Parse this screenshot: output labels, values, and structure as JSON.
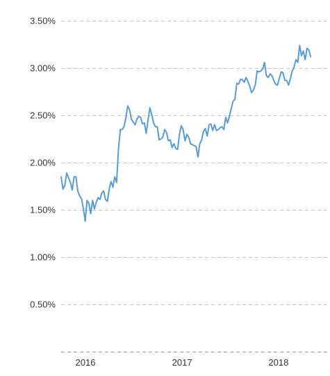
{
  "chart_data": {
    "type": "line",
    "title": "",
    "xlabel": "",
    "ylabel": "",
    "ylim": [
      0,
      3.5
    ],
    "xlim": [
      "2015-10-01",
      "2018-07-15"
    ],
    "grid": true,
    "line_color": "#5b9bd5",
    "grid_color": "#c8c8c8",
    "y_ticks": [
      {
        "value": 0.5,
        "label": "0.50%"
      },
      {
        "value": 1.0,
        "label": "1.00%"
      },
      {
        "value": 1.5,
        "label": "1.50%"
      },
      {
        "value": 2.0,
        "label": "2.00%"
      },
      {
        "value": 2.5,
        "label": "2.50%"
      },
      {
        "value": 3.0,
        "label": "3.00%"
      },
      {
        "value": 3.5,
        "label": "3.50%"
      }
    ],
    "x_ticks": [
      {
        "value": "2016-01-01",
        "label": "2016"
      },
      {
        "value": "2017-01-01",
        "label": "2017"
      },
      {
        "value": "2018-01-01",
        "label": "2018"
      }
    ],
    "series": [
      {
        "points": [
          [
            "2015-10-01",
            1.85
          ],
          [
            "2015-10-08",
            1.72
          ],
          [
            "2015-10-15",
            1.76
          ],
          [
            "2015-10-22",
            1.89
          ],
          [
            "2015-10-29",
            1.84
          ],
          [
            "2015-11-05",
            1.79
          ],
          [
            "2015-11-12",
            1.71
          ],
          [
            "2015-11-19",
            1.85
          ],
          [
            "2015-11-26",
            1.85
          ],
          [
            "2015-12-03",
            1.7
          ],
          [
            "2015-12-10",
            1.65
          ],
          [
            "2015-12-17",
            1.62
          ],
          [
            "2015-12-24",
            1.52
          ],
          [
            "2015-12-31",
            1.38
          ],
          [
            "2016-01-07",
            1.6
          ],
          [
            "2016-01-14",
            1.57
          ],
          [
            "2016-01-21",
            1.46
          ],
          [
            "2016-01-28",
            1.6
          ],
          [
            "2016-02-04",
            1.51
          ],
          [
            "2016-02-11",
            1.58
          ],
          [
            "2016-02-18",
            1.63
          ],
          [
            "2016-02-25",
            1.61
          ],
          [
            "2016-03-03",
            1.68
          ],
          [
            "2016-03-10",
            1.7
          ],
          [
            "2016-03-17",
            1.61
          ],
          [
            "2016-03-24",
            1.59
          ],
          [
            "2016-03-31",
            1.72
          ],
          [
            "2016-04-07",
            1.8
          ],
          [
            "2016-04-14",
            1.74
          ],
          [
            "2016-04-21",
            1.85
          ],
          [
            "2016-04-28",
            1.79
          ],
          [
            "2016-05-05",
            2.14
          ],
          [
            "2016-05-12",
            2.35
          ],
          [
            "2016-05-19",
            2.35
          ],
          [
            "2016-05-26",
            2.38
          ],
          [
            "2016-06-02",
            2.47
          ],
          [
            "2016-06-09",
            2.6
          ],
          [
            "2016-06-16",
            2.56
          ],
          [
            "2016-06-23",
            2.46
          ],
          [
            "2016-06-30",
            2.43
          ],
          [
            "2016-07-07",
            2.4
          ],
          [
            "2016-07-14",
            2.46
          ],
          [
            "2016-07-21",
            2.49
          ],
          [
            "2016-07-28",
            2.48
          ],
          [
            "2016-08-04",
            2.41
          ],
          [
            "2016-08-11",
            2.42
          ],
          [
            "2016-08-18",
            2.31
          ],
          [
            "2016-08-25",
            2.45
          ],
          [
            "2016-09-01",
            2.58
          ],
          [
            "2016-09-08",
            2.51
          ],
          [
            "2016-09-15",
            2.42
          ],
          [
            "2016-09-22",
            2.38
          ],
          [
            "2016-09-29",
            2.38
          ],
          [
            "2016-10-06",
            2.24
          ],
          [
            "2016-10-13",
            2.25
          ],
          [
            "2016-10-20",
            2.27
          ],
          [
            "2016-10-27",
            2.35
          ],
          [
            "2016-11-03",
            2.32
          ],
          [
            "2016-11-10",
            2.23
          ],
          [
            "2016-11-17",
            2.24
          ],
          [
            "2016-11-24",
            2.16
          ],
          [
            "2016-12-01",
            2.2
          ],
          [
            "2016-12-08",
            2.15
          ],
          [
            "2016-12-15",
            2.14
          ],
          [
            "2016-12-22",
            2.3
          ],
          [
            "2016-12-29",
            2.39
          ],
          [
            "2017-01-05",
            2.35
          ],
          [
            "2017-01-12",
            2.23
          ],
          [
            "2017-01-19",
            2.3
          ],
          [
            "2017-01-26",
            2.27
          ],
          [
            "2017-02-02",
            2.2
          ],
          [
            "2017-02-09",
            2.19
          ],
          [
            "2017-02-16",
            2.18
          ],
          [
            "2017-02-23",
            2.17
          ],
          [
            "2017-03-02",
            2.06
          ],
          [
            "2017-03-09",
            2.2
          ],
          [
            "2017-03-16",
            2.24
          ],
          [
            "2017-03-23",
            2.33
          ],
          [
            "2017-03-30",
            2.36
          ],
          [
            "2017-04-06",
            2.28
          ],
          [
            "2017-04-13",
            2.4
          ],
          [
            "2017-04-20",
            2.41
          ],
          [
            "2017-04-27",
            2.34
          ],
          [
            "2017-05-04",
            2.4
          ],
          [
            "2017-05-11",
            2.34
          ],
          [
            "2017-05-18",
            2.35
          ],
          [
            "2017-05-25",
            2.37
          ],
          [
            "2017-06-01",
            2.38
          ],
          [
            "2017-06-08",
            2.35
          ],
          [
            "2017-06-15",
            2.48
          ],
          [
            "2017-06-22",
            2.42
          ],
          [
            "2017-06-29",
            2.49
          ],
          [
            "2017-07-06",
            2.57
          ],
          [
            "2017-07-13",
            2.65
          ],
          [
            "2017-07-20",
            2.67
          ],
          [
            "2017-07-27",
            2.84
          ],
          [
            "2017-08-03",
            2.83
          ],
          [
            "2017-08-10",
            2.88
          ],
          [
            "2017-08-17",
            2.88
          ],
          [
            "2017-08-24",
            2.85
          ],
          [
            "2017-08-31",
            2.9
          ],
          [
            "2017-09-07",
            2.86
          ],
          [
            "2017-09-14",
            2.81
          ],
          [
            "2017-09-21",
            2.74
          ],
          [
            "2017-09-28",
            2.77
          ],
          [
            "2017-10-05",
            2.82
          ],
          [
            "2017-10-12",
            2.97
          ],
          [
            "2017-10-19",
            2.96
          ],
          [
            "2017-10-26",
            2.97
          ],
          [
            "2017-11-02",
            2.99
          ],
          [
            "2017-11-09",
            3.06
          ],
          [
            "2017-11-16",
            2.92
          ],
          [
            "2017-11-23",
            2.9
          ],
          [
            "2017-11-30",
            2.94
          ],
          [
            "2017-12-07",
            2.92
          ],
          [
            "2017-12-14",
            2.87
          ],
          [
            "2017-12-21",
            2.83
          ],
          [
            "2017-12-28",
            2.82
          ],
          [
            "2018-01-04",
            2.89
          ],
          [
            "2018-01-11",
            2.96
          ],
          [
            "2018-01-18",
            2.95
          ],
          [
            "2018-01-25",
            2.87
          ],
          [
            "2018-02-01",
            2.87
          ],
          [
            "2018-02-08",
            2.82
          ],
          [
            "2018-02-15",
            2.89
          ],
          [
            "2018-02-22",
            2.97
          ],
          [
            "2018-03-01",
            3.01
          ],
          [
            "2018-03-08",
            3.09
          ],
          [
            "2018-03-15",
            3.06
          ],
          [
            "2018-03-22",
            3.24
          ],
          [
            "2018-03-29",
            3.13
          ],
          [
            "2018-04-05",
            3.18
          ],
          [
            "2018-04-12",
            3.09
          ],
          [
            "2018-04-19",
            3.21
          ],
          [
            "2018-04-26",
            3.19
          ],
          [
            "2018-05-03",
            3.12
          ]
        ]
      }
    ]
  }
}
